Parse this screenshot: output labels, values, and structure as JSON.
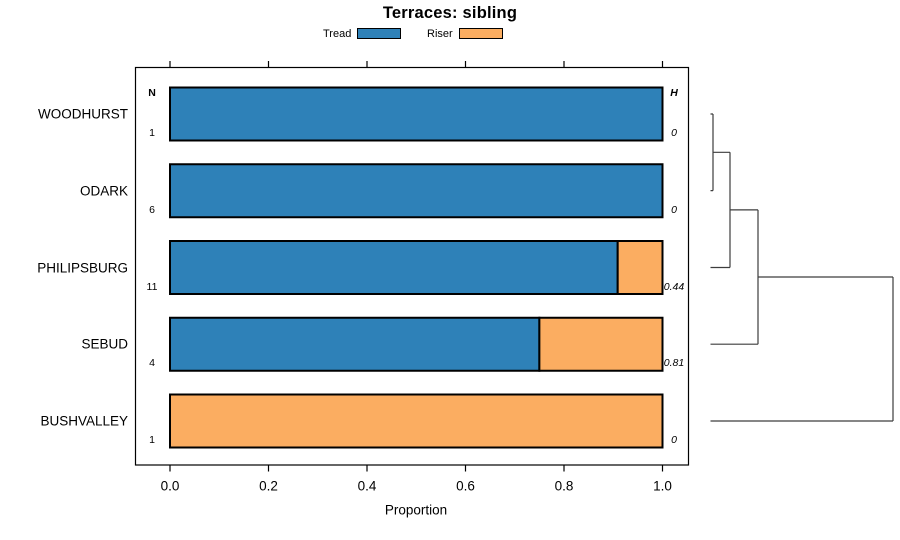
{
  "title": "Terraces: sibling",
  "xlabel": "Proportion",
  "columns": {
    "n_header": "N",
    "h_header": "H"
  },
  "legend": {
    "items": [
      {
        "label": "Tread",
        "color": "#2E81B8"
      },
      {
        "label": "Riser",
        "color": "#FBAD61"
      }
    ]
  },
  "chart_data": {
    "type": "bar",
    "orientation": "horizontal",
    "stacked": true,
    "title": "Terraces: sibling",
    "xlabel": "Proportion",
    "xlim": [
      0,
      1
    ],
    "xticks": [
      "0.0",
      "0.2",
      "0.4",
      "0.6",
      "0.8",
      "1.0"
    ],
    "grid": false,
    "legend_position": "top",
    "categories": [
      "WOODHURST",
      "ODARK",
      "PHILIPSBURG",
      "SEBUD",
      "BUSHVALLEY"
    ],
    "series": [
      {
        "name": "Tread",
        "color": "#2E81B8",
        "values": [
          1,
          1,
          0.909,
          0.75,
          0
        ]
      },
      {
        "name": "Riser",
        "color": "#FBAD61",
        "values": [
          0,
          0,
          0.091,
          0.25,
          1
        ]
      }
    ],
    "n_values": [
      "1",
      "6",
      "11",
      "4",
      "1"
    ],
    "h_values": [
      "0",
      "0",
      "0.44",
      "0.81",
      "0"
    ],
    "dendrogram": {
      "position": "right",
      "leaf_order": [
        "WOODHURST",
        "ODARK",
        "PHILIPSBURG",
        "SEBUD",
        "BUSHVALLEY"
      ],
      "merge_sequence": [
        [
          "WOODHURST",
          "ODARK"
        ],
        [
          "{WOODHURST,ODARK}",
          "PHILIPSBURG"
        ],
        [
          "{WOODHURST,ODARK,PHILIPSBURG}",
          "SEBUD"
        ],
        [
          "{WOODHURST,ODARK,PHILIPSBURG,SEBUD}",
          "BUSHVALLEY"
        ]
      ]
    }
  }
}
